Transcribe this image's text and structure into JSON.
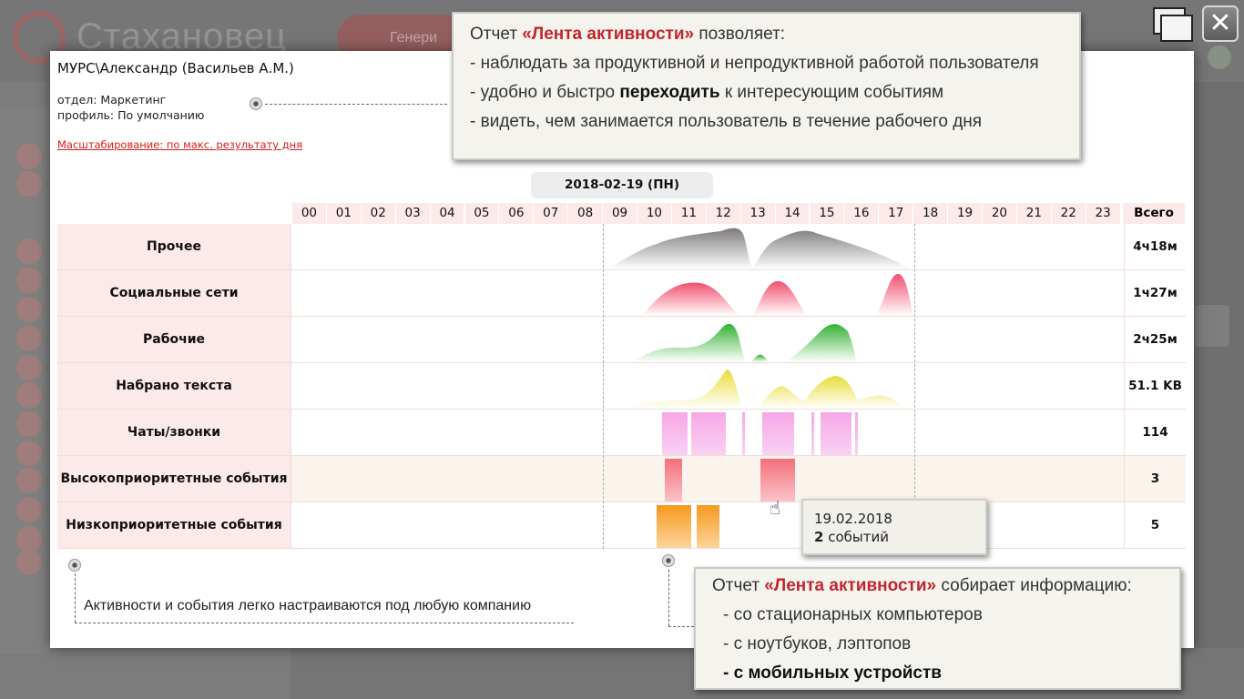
{
  "app": {
    "logo_text": "Стахановец",
    "generate_button_label": "Генери"
  },
  "report": {
    "user": "МУРС\\Александр (Васильев А.М.)",
    "department": "отдел: Маркетинг",
    "profile": "профиль: По умолчанию",
    "scaling_link": "Масштабирование: по макс. результату дня",
    "date": "2018-02-19 (ПН)",
    "total_header": "Всего",
    "hours": [
      "00",
      "01",
      "02",
      "03",
      "04",
      "05",
      "06",
      "07",
      "08",
      "09",
      "10",
      "11",
      "12",
      "13",
      "14",
      "15",
      "16",
      "17",
      "18",
      "19",
      "20",
      "21",
      "22",
      "23"
    ],
    "rows": [
      {
        "label": "Прочее",
        "total": "4ч18м"
      },
      {
        "label": "Социальные сети",
        "total": "1ч27м"
      },
      {
        "label": "Рабочие",
        "total": "2ч25м"
      },
      {
        "label": "Набрано текста",
        "total": "51.1 KB"
      },
      {
        "label": "Чаты/звонки",
        "total": "114"
      },
      {
        "label": "Высокоприоритетные события",
        "total": "3"
      },
      {
        "label": "Низкоприоритетные события",
        "total": "5"
      }
    ],
    "colors": {
      "other": "#7f7b7c",
      "social": "#f0506e",
      "work": "#33b233",
      "typed": "#e9dc3a",
      "chats": "#f6a6e6",
      "high": "#f36f7b",
      "low": "#f59a1e"
    }
  },
  "tooltip": {
    "date": "19.02.2018",
    "count": "2",
    "suffix": "событий"
  },
  "callout_top": {
    "intro": "Отчет ",
    "highlight": "«Лента активности»",
    "intro_end": " позволяет:",
    "line1": "- наблюдать за продуктивной и непродуктивной работой пользователя",
    "line2_a": "- удобно и быстро ",
    "line2_b": "переходить",
    "line2_c": " к интересующим событиям",
    "line3": "- видеть, чем занимается пользователь в течение рабочего дня"
  },
  "callout_bottom": {
    "intro": "Отчет ",
    "highlight": "«Лента активности»",
    "intro_end": " собирает информацию:",
    "line1": "- со стационарных компьютеров",
    "line2": "- с ноутбуков, лэптопов",
    "line3": "- с мобильных устройств"
  },
  "note": "Активности и события легко настраиваются под любую компанию"
}
